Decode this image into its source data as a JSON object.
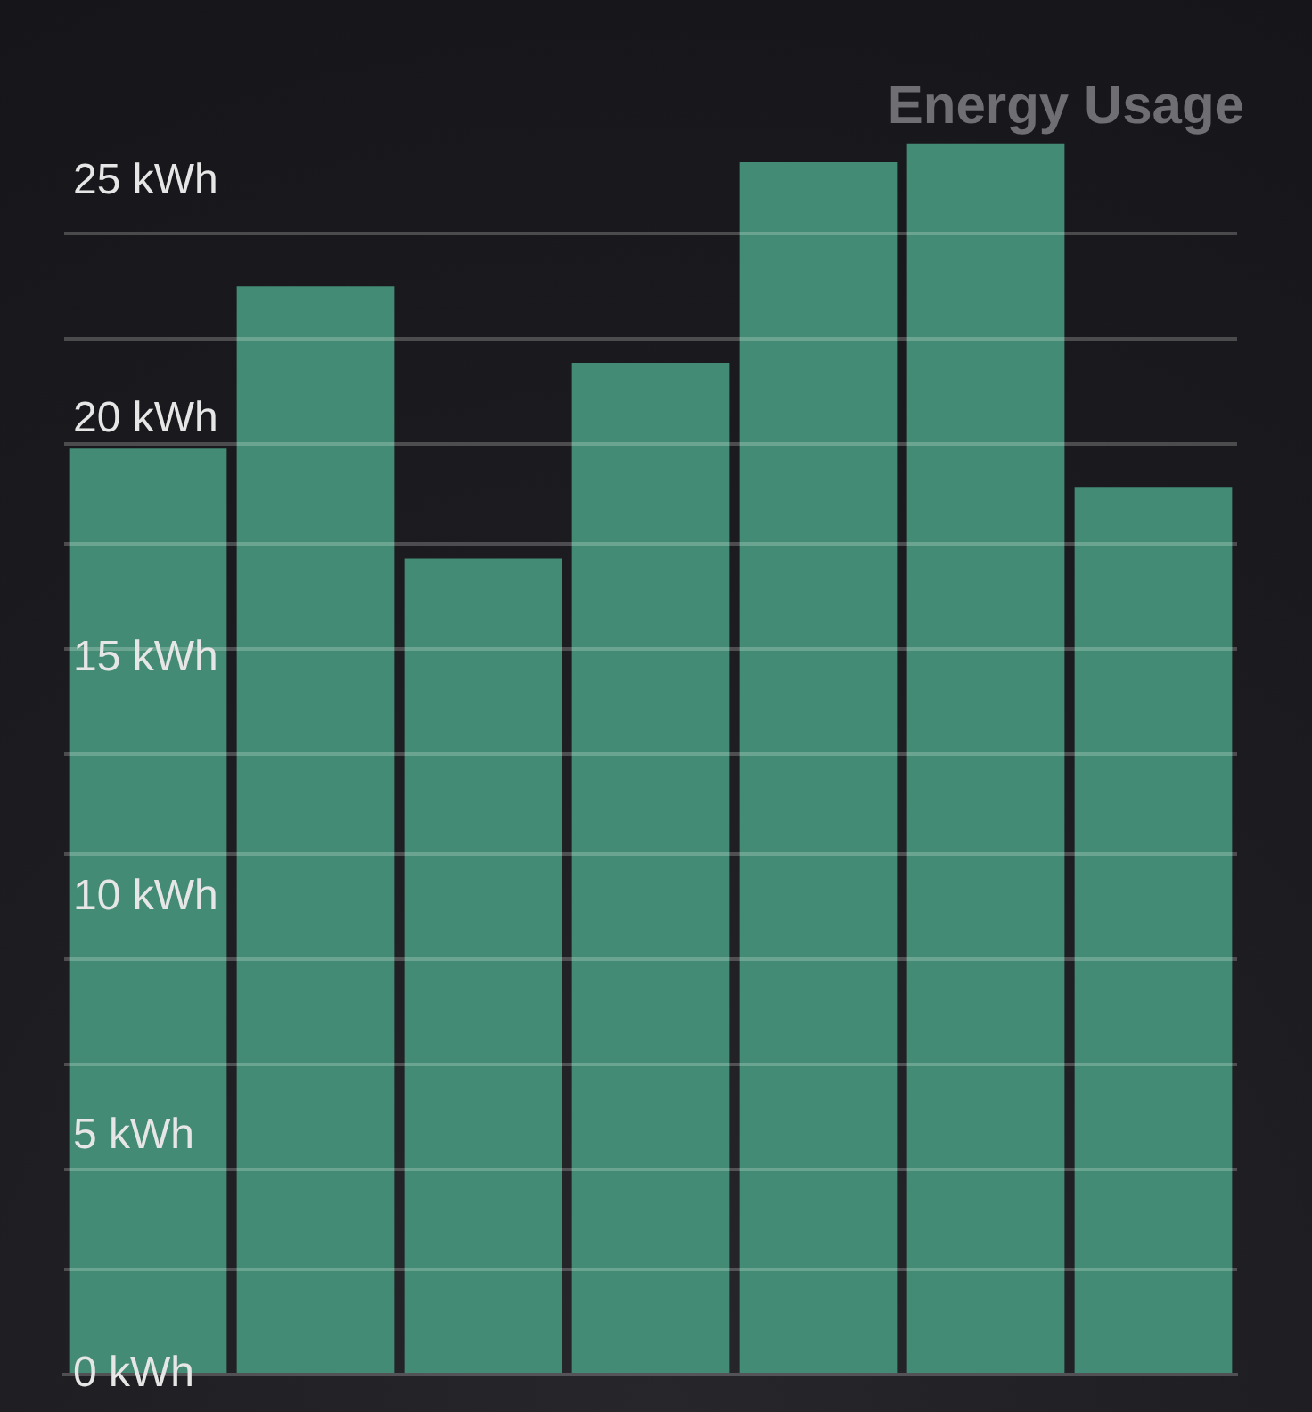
{
  "chart_data": {
    "type": "bar",
    "title": "Energy Usage",
    "categories": [
      null,
      null,
      null,
      null,
      null,
      null,
      null
    ],
    "values": [
      19.4,
      22.8,
      17.1,
      21.2,
      25.4,
      25.8,
      18.6
    ],
    "color": "#438b74",
    "ylim": [
      0,
      28.8
    ],
    "yticks": [
      {
        "value": 0,
        "label": "0 kWh"
      },
      {
        "value": 2.2,
        "label": null
      },
      {
        "value": 4.3,
        "label": null
      },
      {
        "value": 5,
        "label": "5 kWh"
      },
      {
        "value": 6.5,
        "label": null
      },
      {
        "value": 8.7,
        "label": null
      },
      {
        "value": 10,
        "label": "10 kWh"
      },
      {
        "value": 10.9,
        "label": null
      },
      {
        "value": 13,
        "label": null
      },
      {
        "value": 15,
        "label": "15 kWh"
      },
      {
        "value": 15.2,
        "label": null
      },
      {
        "value": 17.4,
        "label": null
      },
      {
        "value": 19.5,
        "label": null
      },
      {
        "value": 20,
        "label": "20 kWh"
      },
      {
        "value": 21.7,
        "label": null
      },
      {
        "value": 23.9,
        "label": null
      },
      {
        "value": 25,
        "label": "25 kWh"
      }
    ],
    "grid": "y",
    "tick_labels": "y"
  }
}
